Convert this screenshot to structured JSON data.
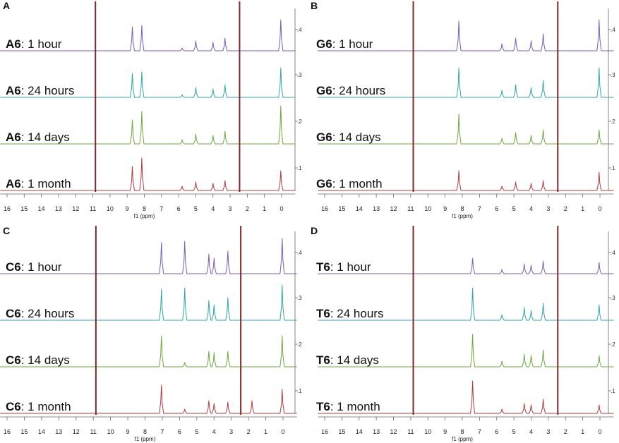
{
  "figure": {
    "panels_description_none": ""
  },
  "chart_data": [
    {
      "type": "line",
      "panel_letter": "A",
      "compound": "A6",
      "xlabel": "f1 (ppm)",
      "xlim": [
        16.4,
        -0.8
      ],
      "x_ticks": [
        16,
        15,
        14,
        13,
        12,
        11,
        10,
        9,
        8,
        7,
        6,
        5,
        4,
        3,
        2,
        1,
        0
      ],
      "y_ticks": [
        ".1",
        ".2",
        ".3",
        ".4"
      ],
      "series": [
        {
          "name": "1 hour",
          "label_bold": "A6",
          "label_rest": ": 1 hour",
          "color": "#7b5cb8"
        },
        {
          "name": "24 hours",
          "label_bold": "A6",
          "label_rest": ": 24 hours",
          "color": "#2fa6a8"
        },
        {
          "name": "14 days",
          "label_bold": "A6",
          "label_rest": ": 14 days",
          "color": "#6ea83c"
        },
        {
          "name": "1 month",
          "label_bold": "A6",
          "label_rest": ": 1 month",
          "color": "#b03c3c"
        }
      ],
      "peaks_ppm": [
        {
          "x": 8.7,
          "h": [
            34,
            34,
            34,
            34
          ]
        },
        {
          "x": 8.15,
          "h": [
            36,
            36,
            46,
            46
          ]
        },
        {
          "x": 5.8,
          "h": [
            4,
            4,
            6,
            6
          ]
        },
        {
          "x": 5.0,
          "h": [
            14,
            14,
            14,
            12
          ]
        },
        {
          "x": 4.0,
          "h": [
            12,
            12,
            12,
            10
          ]
        },
        {
          "x": 3.3,
          "h": [
            18,
            18,
            18,
            14
          ]
        },
        {
          "x": 0.05,
          "h": [
            44,
            42,
            54,
            28
          ]
        }
      ]
    },
    {
      "type": "line",
      "panel_letter": "B",
      "compound": "G6",
      "xlabel": "f1 (ppm)",
      "xlim": [
        16.4,
        -0.8
      ],
      "x_ticks": [
        16,
        15,
        14,
        13,
        12,
        11,
        10,
        9,
        8,
        7,
        6,
        5,
        4,
        3,
        2,
        1,
        0
      ],
      "y_ticks": [
        ".1",
        ".2",
        ".3",
        ".4"
      ],
      "series": [
        {
          "name": "1 hour",
          "label_bold": "G6",
          "label_rest": ": 1 hour",
          "color": "#7b5cb8"
        },
        {
          "name": "24 hours",
          "label_bold": "G6",
          "label_rest": ": 24 hours",
          "color": "#2fa6a8"
        },
        {
          "name": "14 days",
          "label_bold": "G6",
          "label_rest": ": 14 days",
          "color": "#6ea83c"
        },
        {
          "name": "1 month",
          "label_bold": "G6",
          "label_rest": ": 1 month",
          "color": "#b03c3c"
        }
      ],
      "peaks_ppm": [
        {
          "x": 8.2,
          "h": [
            42,
            42,
            42,
            28
          ]
        },
        {
          "x": 5.7,
          "h": [
            10,
            10,
            8,
            6
          ]
        },
        {
          "x": 4.9,
          "h": [
            18,
            18,
            16,
            12
          ]
        },
        {
          "x": 4.0,
          "h": [
            14,
            14,
            12,
            10
          ]
        },
        {
          "x": 3.3,
          "h": [
            24,
            24,
            20,
            14
          ]
        },
        {
          "x": 0.05,
          "h": [
            44,
            42,
            20,
            26
          ]
        }
      ]
    },
    {
      "type": "line",
      "panel_letter": "C",
      "compound": "C6",
      "xlabel": "f1 (ppm)",
      "xlim": [
        16.4,
        -0.8
      ],
      "x_ticks": [
        16,
        15,
        14,
        13,
        12,
        11,
        10,
        9,
        8,
        7,
        6,
        5,
        4,
        3,
        2,
        1,
        0
      ],
      "y_ticks": [
        ".1",
        ".2",
        ".3",
        ".4"
      ],
      "series": [
        {
          "name": "1 hour",
          "label_bold": "C6",
          "label_rest": ": 1 hour",
          "color": "#7b5cb8"
        },
        {
          "name": "24 hours",
          "label_bold": "C6",
          "label_rest": ": 24 hours",
          "color": "#2fa6a8"
        },
        {
          "name": "14 days",
          "label_bold": "C6",
          "label_rest": ": 14 days",
          "color": "#6ea83c"
        },
        {
          "name": "1 month",
          "label_bold": "C6",
          "label_rest": ": 1 month",
          "color": "#b03c3c"
        }
      ],
      "peaks_ppm": [
        {
          "x": 7.05,
          "h": [
            44,
            44,
            44,
            40
          ]
        },
        {
          "x": 5.7,
          "h": [
            46,
            46,
            6,
            6
          ]
        },
        {
          "x": 4.3,
          "h": [
            28,
            28,
            22,
            18
          ]
        },
        {
          "x": 4.0,
          "h": [
            22,
            22,
            20,
            14
          ]
        },
        {
          "x": 3.2,
          "h": [
            32,
            32,
            22,
            16
          ]
        },
        {
          "x": 1.8,
          "h": [
            0,
            0,
            0,
            18
          ]
        },
        {
          "x": 0.05,
          "h": [
            50,
            50,
            44,
            34
          ]
        }
      ]
    },
    {
      "type": "line",
      "panel_letter": "D",
      "compound": "T6",
      "xlabel": "f1 (ppm)",
      "xlim": [
        16.4,
        -0.8
      ],
      "x_ticks": [
        16,
        15,
        14,
        13,
        12,
        11,
        10,
        9,
        8,
        7,
        6,
        5,
        4,
        3,
        2,
        1,
        0
      ],
      "y_ticks": [
        ".1",
        ".2",
        ".3",
        ".4"
      ],
      "series": [
        {
          "name": "1 hour",
          "label_bold": "T6",
          "label_rest": ": 1 hour",
          "color": "#7b5cb8"
        },
        {
          "name": "24 hours",
          "label_bold": "T6",
          "label_rest": ": 24 hours",
          "color": "#2fa6a8"
        },
        {
          "name": "14 days",
          "label_bold": "T6",
          "label_rest": ": 14 days",
          "color": "#6ea83c"
        },
        {
          "name": "1 month",
          "label_bold": "T6",
          "label_rest": ": 1 month",
          "color": "#b03c3c"
        }
      ],
      "peaks_ppm": [
        {
          "x": 7.4,
          "h": [
            22,
            46,
            46,
            46
          ]
        },
        {
          "x": 5.7,
          "h": [
            6,
            8,
            8,
            6
          ]
        },
        {
          "x": 4.4,
          "h": [
            14,
            18,
            18,
            14
          ]
        },
        {
          "x": 4.0,
          "h": [
            12,
            14,
            16,
            12
          ]
        },
        {
          "x": 3.3,
          "h": [
            18,
            24,
            24,
            20
          ]
        },
        {
          "x": 0.05,
          "h": [
            16,
            22,
            16,
            12
          ]
        }
      ]
    }
  ]
}
